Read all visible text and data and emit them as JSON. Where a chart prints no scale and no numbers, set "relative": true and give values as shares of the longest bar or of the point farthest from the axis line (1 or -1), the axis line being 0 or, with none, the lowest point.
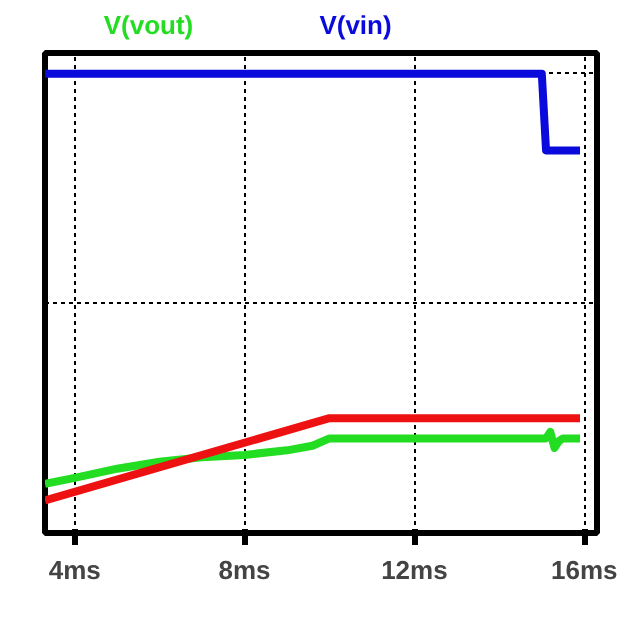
{
  "chart_data": {
    "type": "line",
    "relative": true,
    "grid": true,
    "line_style": "solid",
    "marker": "none",
    "xlim": [
      3.3,
      16.3
    ],
    "xticks": [
      {
        "value": 4,
        "label": "4ms"
      },
      {
        "value": 8,
        "label": "8ms"
      },
      {
        "value": 12,
        "label": "12ms"
      },
      {
        "value": 16,
        "label": "16ms"
      }
    ],
    "series": [
      {
        "name": "V(vout)",
        "color": "#22dd22",
        "x": [
          3.3,
          4,
          5,
          6,
          7,
          8,
          9,
          9.6,
          10,
          11,
          12,
          13,
          14,
          15.1,
          15.2,
          15.3,
          15.4,
          15.5,
          15.9
        ],
        "values": [
          0.107,
          0.12,
          0.14,
          0.155,
          0.165,
          0.17,
          0.18,
          0.19,
          0.206,
          0.206,
          0.206,
          0.206,
          0.206,
          0.206,
          0.22,
          0.185,
          0.2,
          0.206,
          0.206
        ]
      },
      {
        "name": "V(vin)",
        "color": "#0a0adc",
        "x": [
          3.3,
          15.0,
          15.1,
          15.9
        ],
        "values": [
          1,
          1,
          0.833,
          0.833
        ]
      },
      {
        "color": "#ee1111",
        "x": [
          3.3,
          10,
          15.9
        ],
        "values": [
          0.071,
          0.25,
          0.25
        ]
      }
    ]
  }
}
